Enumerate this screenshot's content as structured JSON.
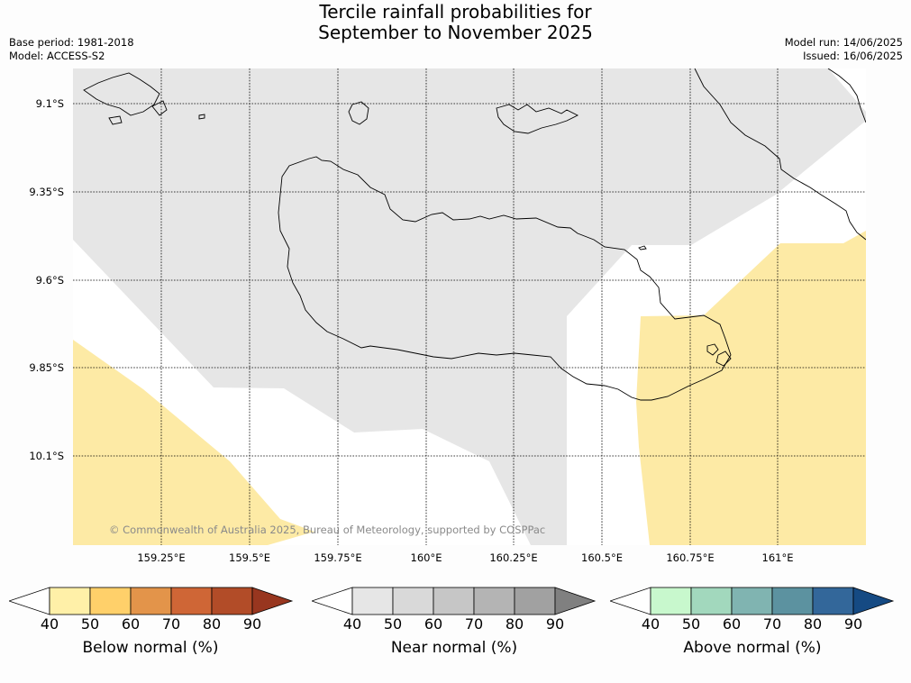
{
  "title_line1": "Tercile rainfall probabilities for",
  "title_line2": "September to November 2025",
  "base_period": "Base period: 1981-2018",
  "model": "Model: ACCESS-S2",
  "model_run": "Model run: 14/06/2025",
  "issued": "Issued: 16/06/2025",
  "lat_labels": [
    "9.1°S",
    "9.35°S",
    "9.6°S",
    "9.85°S",
    "10.1°S"
  ],
  "lon_labels": [
    "159.25°E",
    "159.5°E",
    "159.75°E",
    "160°E",
    "160.25°E",
    "160.5°E",
    "160.75°E",
    "161°E"
  ],
  "copyright": "© Commonwealth of Australia 2025, Bureau of Meteorology, supported by COSPPac",
  "colorbars": [
    {
      "label": "Below normal (%)",
      "ticks": [
        "40",
        "50",
        "60",
        "70",
        "80",
        "90"
      ],
      "colors": [
        "#ffffff",
        "#fff0a8",
        "#ffd06a",
        "#e3944a",
        "#cf6636",
        "#b24c28",
        "#98361f"
      ]
    },
    {
      "label": "Near normal (%)",
      "ticks": [
        "40",
        "50",
        "60",
        "70",
        "80",
        "90"
      ],
      "colors": [
        "#ffffff",
        "#e6e6e6",
        "#d9d9d9",
        "#c6c6c6",
        "#b4b4b4",
        "#a1a1a1",
        "#808080"
      ]
    },
    {
      "label": "Above normal (%)",
      "ticks": [
        "40",
        "50",
        "60",
        "70",
        "80",
        "90"
      ],
      "colors": [
        "#ffffff",
        "#c8f8cd",
        "#a2d8bd",
        "#80b4b1",
        "#5c92a0",
        "#33679a",
        "#154a83"
      ]
    }
  ],
  "map_colors": {
    "below_40_50": "#fdeaa5",
    "near_40_50": "#e6e6e6",
    "coast": "#000000"
  }
}
